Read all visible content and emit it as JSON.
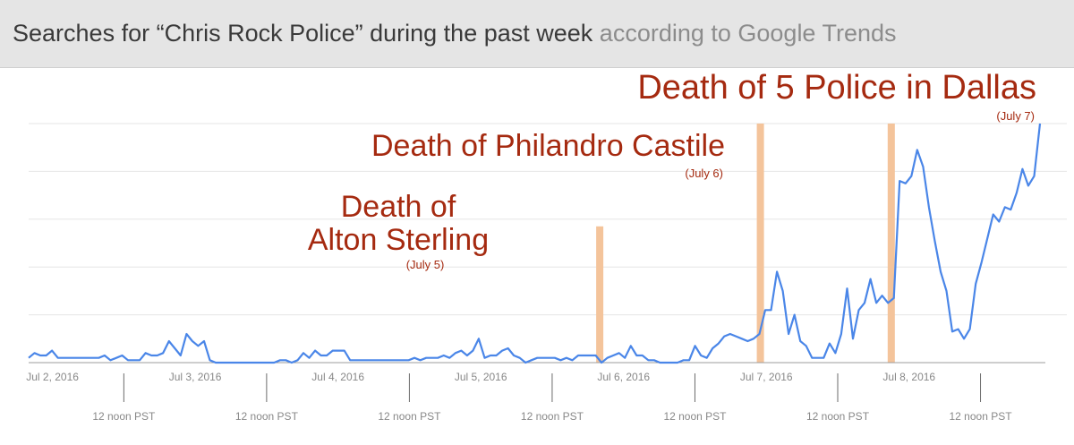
{
  "header": {
    "title": "Searches for “Chris Rock Police” during the past week",
    "source": "according to Google Trends"
  },
  "colors": {
    "line": "#4a86e8",
    "event_bar": "#f4c49b",
    "annotation": "#a52a10",
    "grid": "#e6e6e6",
    "axis": "#9e9e9e",
    "tick_text": "#888888"
  },
  "chart_data": {
    "type": "line",
    "title": "",
    "xlabel": "",
    "ylabel": "",
    "ylim": [
      0,
      100
    ],
    "grid": true,
    "x_range": [
      "2016-07-01 20:00",
      "2016-07-08 22:00"
    ],
    "x_ticks_day": [
      "Jul 2, 2016",
      "Jul 3, 2016",
      "Jul 4, 2016",
      "Jul 5, 2016",
      "Jul 6, 2016",
      "Jul 7, 2016",
      "Jul 8, 2016"
    ],
    "x_ticks_noon": [
      "12 noon PST",
      "12 noon PST",
      "12 noon PST",
      "12 noon PST",
      "12 noon PST",
      "12 noon PST",
      "12 noon PST"
    ],
    "series": [
      {
        "values": [
          2,
          4,
          3,
          3,
          5,
          2,
          2,
          2,
          2,
          2,
          2,
          2,
          2,
          3,
          1,
          2,
          3,
          1,
          1,
          1,
          4,
          3,
          3,
          4,
          9,
          6,
          3,
          12,
          9,
          7,
          9,
          1,
          0,
          0,
          0,
          0,
          0,
          0,
          0,
          0,
          0,
          0,
          0,
          1,
          1,
          0,
          1,
          4,
          2,
          5,
          3,
          3,
          5,
          5,
          5,
          1,
          1,
          1,
          1,
          1,
          1,
          1,
          1,
          1,
          1,
          1,
          2,
          1,
          2,
          2,
          2,
          3,
          2,
          4,
          5,
          3,
          5,
          10,
          2,
          3,
          3,
          5,
          6,
          3,
          2,
          0,
          1,
          2,
          2,
          2,
          2,
          1,
          2,
          1,
          3,
          3,
          3,
          3,
          0,
          2,
          3,
          4,
          2,
          7,
          3,
          3,
          1,
          1,
          0,
          0,
          0,
          0,
          1,
          1,
          7,
          3,
          2,
          6,
          8,
          11,
          12,
          11,
          10,
          9,
          10,
          12,
          22,
          22,
          38,
          30,
          12,
          20,
          9,
          7,
          2,
          2,
          2,
          8,
          4,
          12,
          31,
          10,
          22,
          25,
          35,
          25,
          28,
          25,
          27,
          76,
          75,
          78,
          89,
          82,
          65,
          51,
          38,
          30,
          13,
          14,
          10,
          14,
          33,
          42,
          52,
          62,
          59,
          65,
          64,
          71,
          81,
          74,
          78,
          100
        ]
      }
    ],
    "events": [
      {
        "label_lines": [
          "Death of",
          "Alton Sterling"
        ],
        "date_label": "(July 5)",
        "time": "2016-07-05 20:00",
        "bar_top": 57
      },
      {
        "label_lines": [
          "Death of Philandro Castile"
        ],
        "date_label": "(July 6)",
        "time": "2016-07-06 23:00",
        "bar_top": 100
      },
      {
        "label_lines": [
          "Death of 5 Police in Dallas"
        ],
        "date_label": "(July 7)",
        "time": "2016-07-07 21:00",
        "bar_top": 100
      }
    ]
  }
}
